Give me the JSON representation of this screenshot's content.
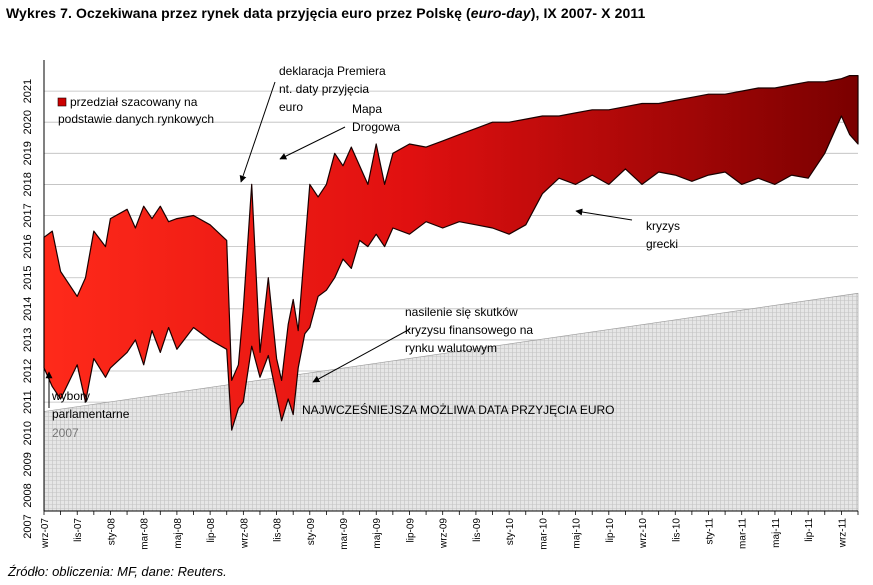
{
  "title": {
    "prefix": "Wykres 7. Oczekiwana przez rynek data przyjęcia euro przez Polskę (",
    "italic": "euro-day",
    "suffix": "), IX 2007- X 2011"
  },
  "source": "Źródło: obliczenia: MF, dane: Reuters.",
  "colors": {
    "band_light": "#ff2a1a",
    "band_dark": "#7a0000",
    "outline": "#1a0000",
    "earliest_fill": "#e6e6e6",
    "earliest_grid": "#c2c2c2",
    "gridline": "#bdbdbd"
  },
  "chart_data": {
    "type": "area",
    "title": "Wykres 7. Oczekiwana przez rynek data przyjęcia euro przez Polskę (euro-day), IX 2007- X 2011",
    "ylim": [
      2007.5,
      2022.0
    ],
    "y_ticks": [
      "2007",
      "2008",
      "2009",
      "2010",
      "2011",
      "2012",
      "2013",
      "2014",
      "2015",
      "2016",
      "2017",
      "2018",
      "2019",
      "2020",
      "2021"
    ],
    "x_ticks": [
      "wrz-07",
      "lis-07",
      "sty-08",
      "mar-08",
      "maj-08",
      "lip-08",
      "wrz-08",
      "lis-08",
      "sty-09",
      "mar-09",
      "maj-09",
      "lip-09",
      "wrz-09",
      "lis-09",
      "sty-10",
      "mar-10",
      "maj-10",
      "lip-10",
      "wrz-10",
      "lis-10",
      "sty-11",
      "mar-11",
      "maj-11",
      "lip-11",
      "wrz-11"
    ],
    "x_range": [
      "2007-09",
      "2011-10"
    ],
    "grid": "horizontal",
    "series": [
      {
        "name": "przedział szacowany na podstawie danych rynkowych",
        "months": [
          0,
          0.5,
          1,
          2,
          2.5,
          3,
          3.7,
          4,
          5,
          5.5,
          6,
          6.5,
          7,
          7.5,
          8,
          9,
          10,
          11,
          11.3,
          11.7,
          12,
          12.5,
          13,
          13.5,
          14,
          14.3,
          14.7,
          15,
          15.3,
          15.7,
          16,
          16.5,
          17,
          17.5,
          18,
          18.5,
          19,
          19.5,
          20,
          20.5,
          21,
          22,
          23,
          24,
          25,
          26,
          27,
          28,
          29,
          30,
          31,
          32,
          33,
          34,
          35,
          36,
          37,
          38,
          39,
          40,
          41,
          42,
          43,
          44,
          45,
          46,
          47,
          48,
          48.5,
          49
        ],
        "upper": [
          2016.3,
          2016.5,
          2015.2,
          2014.4,
          2015.0,
          2016.5,
          2016.0,
          2016.9,
          2017.2,
          2016.6,
          2017.3,
          2016.9,
          2017.3,
          2016.8,
          2016.9,
          2017.0,
          2016.7,
          2016.2,
          2011.7,
          2012.2,
          2014.0,
          2018.0,
          2012.6,
          2015.0,
          2012.4,
          2011.7,
          2013.5,
          2014.3,
          2013.3,
          2016.0,
          2018.0,
          2017.6,
          2018.0,
          2019.0,
          2018.6,
          2019.2,
          2018.6,
          2018.0,
          2019.3,
          2018.0,
          2019.0,
          2019.3,
          2019.2,
          2019.4,
          2019.6,
          2019.8,
          2020.0,
          2020.0,
          2020.1,
          2020.2,
          2020.2,
          2020.3,
          2020.4,
          2020.4,
          2020.5,
          2020.6,
          2020.6,
          2020.7,
          2020.8,
          2020.9,
          2020.9,
          2021.0,
          2021.1,
          2021.1,
          2021.2,
          2021.3,
          2021.3,
          2021.4,
          2021.5,
          2021.5
        ],
        "lower": [
          2012.1,
          2011.5,
          2011.1,
          2012.2,
          2011.0,
          2012.4,
          2011.8,
          2012.1,
          2012.6,
          2013.0,
          2012.2,
          2013.3,
          2012.6,
          2013.4,
          2012.7,
          2013.4,
          2013.0,
          2012.7,
          2010.1,
          2010.8,
          2011.0,
          2012.8,
          2011.8,
          2012.5,
          2011.2,
          2010.4,
          2011.1,
          2010.6,
          2012.1,
          2013.2,
          2013.4,
          2014.4,
          2014.6,
          2015.0,
          2015.6,
          2015.3,
          2016.2,
          2016.0,
          2016.4,
          2016.0,
          2016.6,
          2016.4,
          2016.8,
          2016.6,
          2016.8,
          2016.7,
          2016.6,
          2016.4,
          2016.7,
          2017.7,
          2018.2,
          2018.0,
          2018.3,
          2018.0,
          2018.5,
          2018.0,
          2018.4,
          2018.3,
          2018.1,
          2018.3,
          2018.4,
          2018.0,
          2018.2,
          2018.0,
          2018.3,
          2018.2,
          2019.0,
          2020.2,
          2019.6,
          2019.3
        ]
      },
      {
        "name": "NAJWCZEŚNIEJSZA MOŻLIWA DATA PRZYJĘCIA EURO",
        "months": [
          0,
          49
        ],
        "values": [
          2010.7,
          2014.5
        ]
      }
    ],
    "annotations": [
      {
        "id": "wybory",
        "lines": [
          "wybory",
          "parlamentarne"
        ],
        "extra": "2007"
      },
      {
        "id": "premier",
        "lines": [
          "deklaracja Premiera",
          "nt. daty przyjęcia",
          "euro"
        ]
      },
      {
        "id": "mapa",
        "lines": [
          "Mapa",
          "Drogowa"
        ]
      },
      {
        "id": "kryzys",
        "lines": [
          "kryzys",
          "grecki"
        ]
      },
      {
        "id": "skutki",
        "lines": [
          "nasilenie się skutków",
          "kryzysu finansowego na",
          "rynku walutowym"
        ]
      },
      {
        "id": "earliest",
        "lines": [
          "NAJWCZEŚNIEJSZA MOŻLIWA DATA PRZYJĘCIA EURO"
        ]
      }
    ],
    "legend": {
      "position": "top-left",
      "lines": [
        "przedział szacowany na",
        "podstawie danych rynkowych"
      ]
    }
  }
}
